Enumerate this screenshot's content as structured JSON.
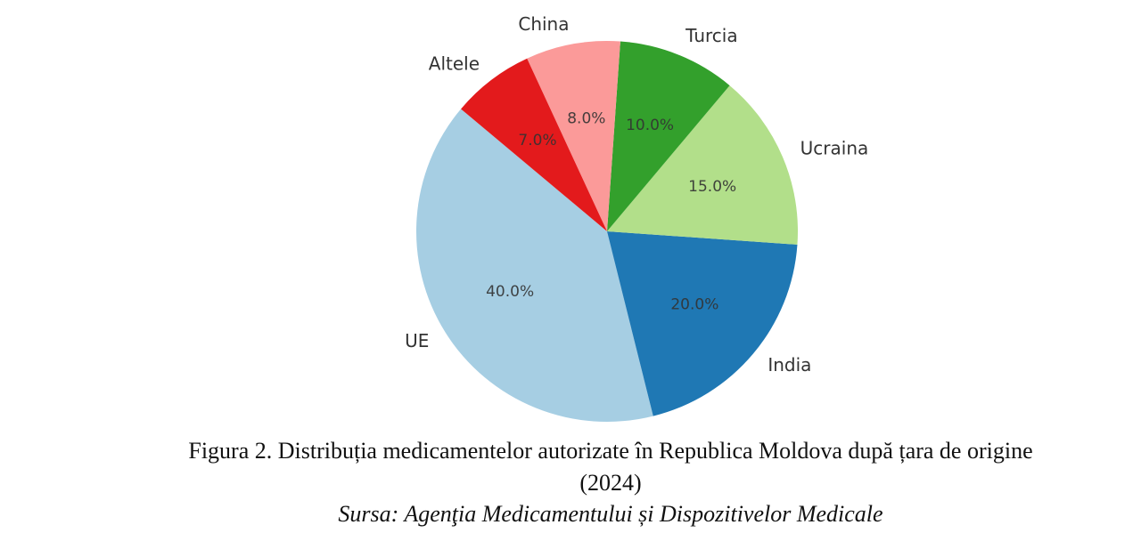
{
  "chart_data": {
    "type": "pie",
    "labels": [
      "UE",
      "India",
      "Ucraina",
      "Turcia",
      "China",
      "Altele"
    ],
    "values": [
      40.0,
      20.0,
      15.0,
      10.0,
      8.0,
      7.0
    ],
    "data_labels": [
      "40.0%",
      "20.0%",
      "15.0%",
      "10.0%",
      "8.0%",
      "7.0%"
    ],
    "colors": [
      "#a6cee3",
      "#1f78b4",
      "#b2df8a",
      "#33a02c",
      "#fb9a99",
      "#e31a1c"
    ],
    "start_angle_deg": 140,
    "direction": "counterclockwise",
    "title": ""
  },
  "caption": {
    "line1": "Figura 2. Distribuția medicamentelor autorizate în Republica Moldova după țara de origine",
    "line2": "(2024)",
    "source": "Sursa: Agenţia Medicamentului și Dispozitivelor Medicale"
  }
}
